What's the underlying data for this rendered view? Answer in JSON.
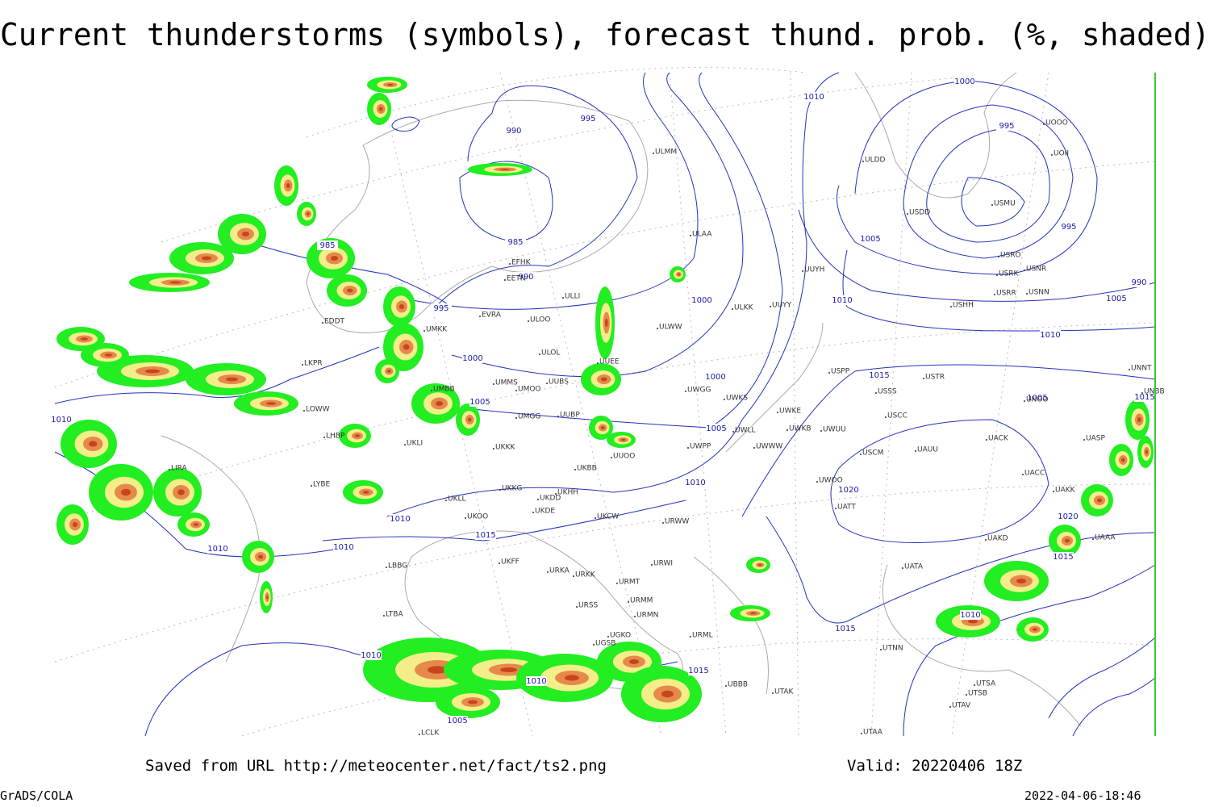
{
  "header": {
    "title": "Current thunderstorms (symbols), forecast thund. prob. (%, shaded)"
  },
  "isobar_labels": [
    "1010",
    "990",
    "995",
    "985",
    "990",
    "985",
    "1000",
    "995",
    "1005",
    "1000",
    "1005",
    "995",
    "1000",
    "1005",
    "1010",
    "1010",
    "1015",
    "1010",
    "1010",
    "1015",
    "1005",
    "1010",
    "1010",
    "1015",
    "1020",
    "1020",
    "1015",
    "1010",
    "1000",
    "990",
    "995",
    "1005",
    "1010",
    "1015",
    "1015",
    "1010",
    "1005",
    "1010"
  ],
  "stations": [
    "ULMM",
    "ULAA",
    "EFHK",
    "EETN",
    "ULLI",
    "EVRA",
    "ULOO",
    "UMKK",
    "EDDT",
    "ULWW",
    "ULKK",
    "UUYY",
    "UUYH",
    "ULDD",
    "USDD",
    "USMU",
    "UOOO",
    "UOII",
    "USRO",
    "USRK",
    "USNR",
    "USRR",
    "USNN",
    "USHH",
    "ULOL",
    "UMMS",
    "UMOO",
    "UUBS",
    "UMBB",
    "UUEE",
    "UWGG",
    "UWKS",
    "UWKE",
    "UWKB",
    "UWUU",
    "USPP",
    "USSS",
    "USTR",
    "USCC",
    "UNOO",
    "UACC",
    "UACK",
    "UASP",
    "UNNT",
    "UNBB",
    "USCM",
    "UAUU",
    "UWOO",
    "UATT",
    "UAKK",
    "UAKD",
    "UATA",
    "UAAA",
    "UMGG",
    "UUBP",
    "UKKK",
    "UKLI",
    "UKBB",
    "UUOO",
    "UWPP",
    "UWWW",
    "UWLL",
    "UKKG",
    "UKDD",
    "UKHH",
    "UKDE",
    "UKOO",
    "UKCW",
    "URWW",
    "UKFF",
    "URKA",
    "URKK",
    "URMT",
    "URMM",
    "URMN",
    "URSS",
    "URWI",
    "URML",
    "UBBB",
    "UTAK",
    "UTAA",
    "UTNN",
    "UGKO",
    "UGSB",
    "UTSA",
    "UTSB",
    "UTAV",
    "LKPR",
    "LOWW",
    "LHBP",
    "LIRA",
    "LYBE",
    "LBBG",
    "LTBA",
    "LCLK",
    "UKLL"
  ],
  "footer": {
    "source": "Saved from URL http://meteocenter.net/fact/ts2.png",
    "valid": "Valid: 20220406 18Z",
    "software": "GrADS/COLA",
    "timestamp": "2022-04-06-18:46"
  }
}
